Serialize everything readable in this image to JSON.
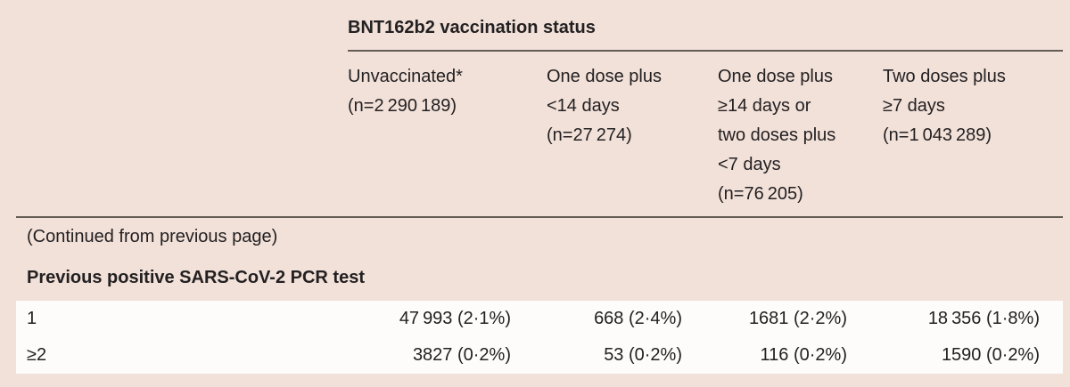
{
  "table": {
    "group_header": "BNT162b2 vaccination status",
    "columns": [
      "Unvaccinated*\n(n=2 290 189)",
      "One dose plus\n<14 days\n(n=27 274)",
      "One dose plus\n≥14 days or\ntwo doses plus\n<7 days\n(n=76 205)",
      "Two doses plus\n≥7 days\n(n=1 043 289)"
    ],
    "continued_note": "(Continued from previous page)",
    "section_header": "Previous positive SARS-CoV-2 PCR test",
    "rows": [
      {
        "label": "1",
        "values": [
          "47 993 (2·1%)",
          "668 (2·4%)",
          "1681 (2·2%)",
          "18 356 (1·8%)"
        ]
      },
      {
        "label": "≥2",
        "values": [
          "3827 (0·2%)",
          "53 (0·2%)",
          "116 (0·2%)",
          "1590 (0·2%)"
        ]
      }
    ],
    "colors": {
      "page_background": "#f2e1d9",
      "data_row_background": "#fdfcfa",
      "rule_color": "#645c55",
      "text_color": "#232021"
    }
  }
}
